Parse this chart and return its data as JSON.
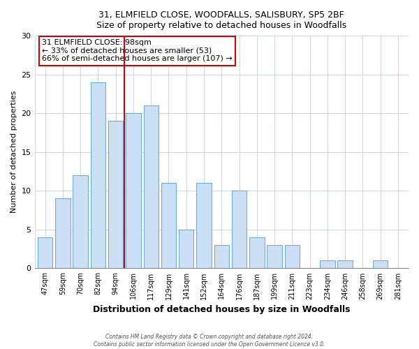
{
  "title_line1": "31, ELMFIELD CLOSE, WOODFALLS, SALISBURY, SP5 2BF",
  "title_line2": "Size of property relative to detached houses in Woodfalls",
  "xlabel": "Distribution of detached houses by size in Woodfalls",
  "ylabel": "Number of detached properties",
  "bar_labels": [
    "47sqm",
    "59sqm",
    "70sqm",
    "82sqm",
    "94sqm",
    "106sqm",
    "117sqm",
    "129sqm",
    "141sqm",
    "152sqm",
    "164sqm",
    "176sqm",
    "187sqm",
    "199sqm",
    "211sqm",
    "223sqm",
    "234sqm",
    "246sqm",
    "258sqm",
    "269sqm",
    "281sqm"
  ],
  "bar_heights": [
    4,
    9,
    12,
    24,
    19,
    20,
    21,
    11,
    5,
    11,
    3,
    10,
    4,
    3,
    3,
    0,
    1,
    1,
    0,
    1,
    0
  ],
  "bar_color": "#cce0f5",
  "bar_edge_color": "#6baed6",
  "ylim": [
    0,
    30
  ],
  "yticks": [
    0,
    5,
    10,
    15,
    20,
    25,
    30
  ],
  "vline_x_index": 4.5,
  "annotation_title": "31 ELMFIELD CLOSE: 98sqm",
  "annotation_line2": "← 33% of detached houses are smaller (53)",
  "annotation_line3": "66% of semi-detached houses are larger (107) →",
  "annotation_box_color": "#ffffff",
  "annotation_box_edge": "#cc0000",
  "vline_color": "#cc0000",
  "footer_line1": "Contains HM Land Registry data © Crown copyright and database right 2024.",
  "footer_line2": "Contains public sector information licensed under the Open Government Licence v3.0.",
  "background_color": "#ffffff",
  "plot_background": "#ffffff",
  "grid_color": "#d0d8e8",
  "bar_width": 0.85
}
